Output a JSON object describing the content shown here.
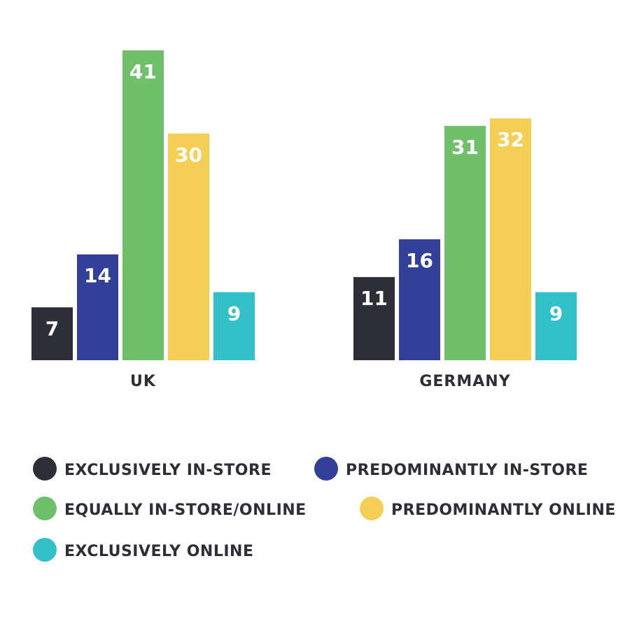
{
  "chart_data": {
    "type": "bar",
    "title": "",
    "xlabel": "",
    "ylabel": "",
    "categories": [
      "UK",
      "GERMANY"
    ],
    "series": [
      {
        "name": "EXCLUSIVELY IN-STORE",
        "values": [
          7,
          11
        ],
        "color": "#2d2e37"
      },
      {
        "name": "PREDOMINANTLY IN-STORE",
        "values": [
          14,
          16
        ],
        "color": "#33409a"
      },
      {
        "name": "EQUALLY IN-STORE/ONLINE",
        "values": [
          41,
          31
        ],
        "color": "#6fbf6b"
      },
      {
        "name": "PREDOMINANTLY ONLINE",
        "values": [
          30,
          32
        ],
        "color": "#f5cf55"
      },
      {
        "name": "EXCLUSIVELY ONLINE",
        "values": [
          9,
          9
        ],
        "color": "#34c0c8"
      }
    ],
    "ylim": [
      0,
      41
    ],
    "grid": false,
    "axes_visible": false,
    "data_labels": true,
    "legend_position": "bottom"
  }
}
